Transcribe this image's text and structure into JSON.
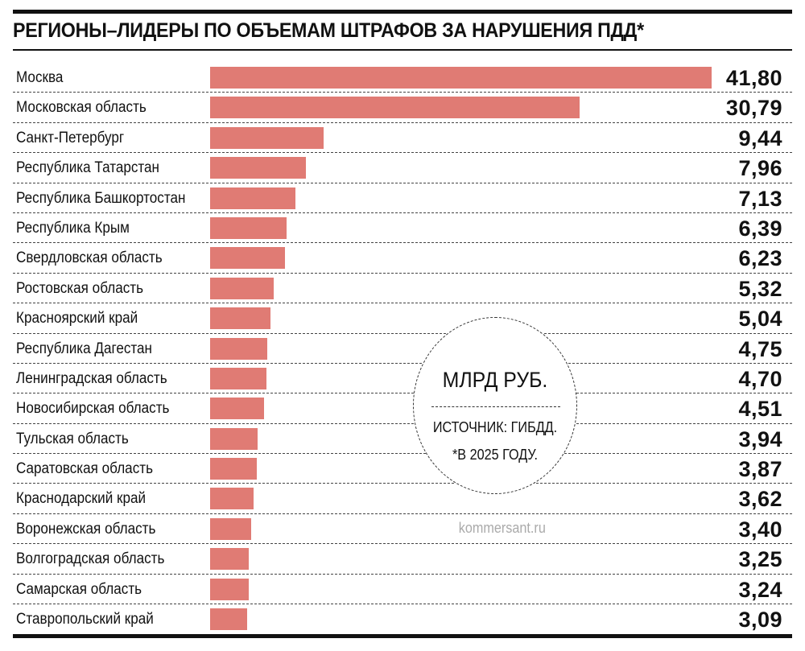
{
  "chart_data": {
    "type": "bar",
    "orientation": "horizontal",
    "title": "РЕГИОНЫ–ЛИДЕРЫ ПО ОБЪЕМАМ ШТРАФОВ ЗА НАРУШЕНИЯ ПДД*",
    "unit": "МЛРД РУБ.",
    "source": "ИСТОЧНИК: ГИБДД.",
    "note": "*В 2025 ГОДУ.",
    "categories": [
      "Москва",
      "Московская область",
      "Санкт-Петербург",
      "Республика Татарстан",
      "Республика Башкортостан",
      "Республика Крым",
      "Свердловская область",
      "Ростовская область",
      "Красноярский край",
      "Республика Дагестан",
      "Ленинградская область",
      "Новосибирская область",
      "Тульская область",
      "Саратовская область",
      "Краснодарский край",
      "Воронежская область",
      "Волгоградская область",
      "Самарская область",
      "Ставропольский край"
    ],
    "values": [
      41.8,
      30.79,
      9.44,
      7.96,
      7.13,
      6.39,
      6.23,
      5.32,
      5.04,
      4.75,
      4.7,
      4.51,
      3.94,
      3.87,
      3.62,
      3.4,
      3.25,
      3.24,
      3.09
    ],
    "value_labels": [
      "41,80",
      "30,79",
      "9,44",
      "7,96",
      "7,13",
      "6,39",
      "6,23",
      "5,32",
      "5,04",
      "4,75",
      "4,70",
      "4,51",
      "3,94",
      "3,87",
      "3,62",
      "3,40",
      "3,25",
      "3,24",
      "3,09"
    ],
    "xlim": [
      0,
      41.8
    ],
    "grid": false,
    "bar_color": "#e07b74"
  },
  "watermark": "kommersant.ru"
}
